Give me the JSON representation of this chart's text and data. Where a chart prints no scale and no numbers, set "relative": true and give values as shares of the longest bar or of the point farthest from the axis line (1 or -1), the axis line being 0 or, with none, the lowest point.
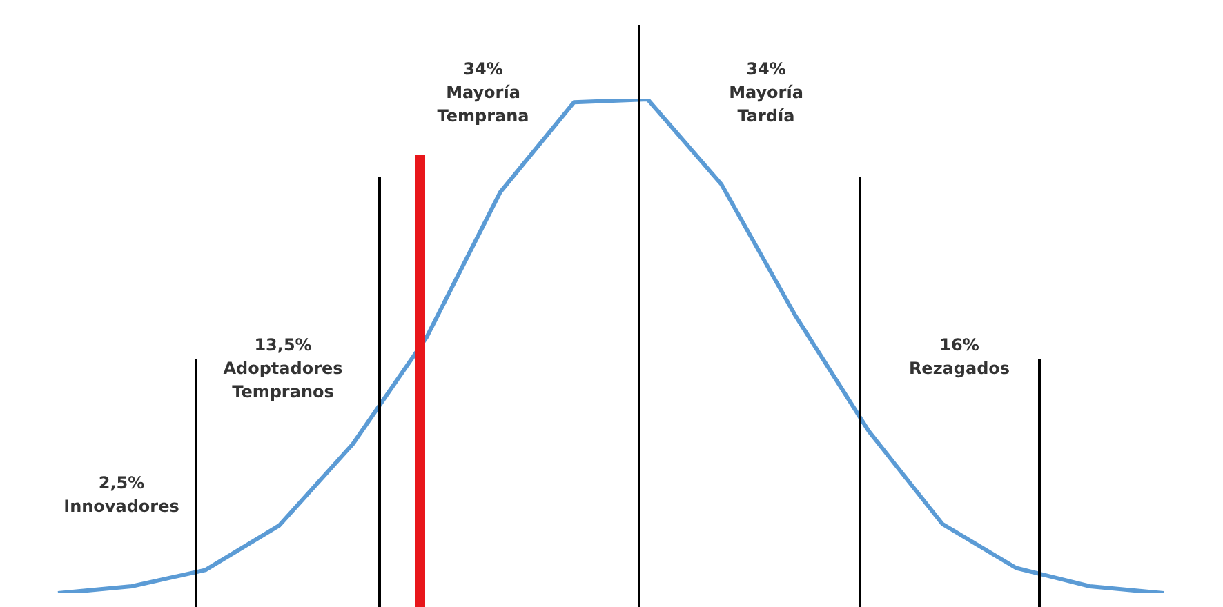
{
  "chart_data": {
    "type": "line",
    "relative": true,
    "legend": false,
    "marker": "none",
    "categories": [
      null,
      null,
      null,
      null,
      null,
      null,
      null,
      null,
      null,
      null,
      null,
      null,
      null,
      null,
      null,
      null
    ],
    "series": [
      {
        "color": "#5b9bd5",
        "values": [
          0,
          0.014,
          0.047,
          0.137,
          0.302,
          0.518,
          0.812,
          0.994,
          1,
          0.828,
          0.563,
          0.328,
          0.14,
          0.051,
          0.014,
          0
        ]
      }
    ],
    "annotations": [
      "2,5%\nInnovadores",
      "13,5%\nAdoptadores\nTempranos",
      "34%\nMayoría\nTemprana",
      "34%\nMayoría\nTardía",
      "16%\nRezagados"
    ]
  }
}
